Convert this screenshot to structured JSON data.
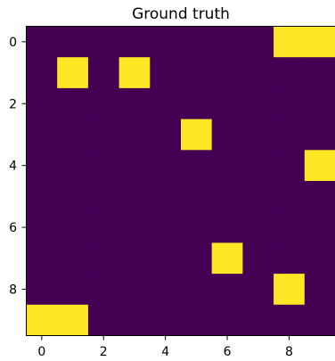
{
  "chart_data": {
    "type": "heatmap",
    "title": "Ground truth",
    "rows": 10,
    "cols": 10,
    "x_ticks": [
      0,
      2,
      4,
      6,
      8
    ],
    "y_ticks": [
      0,
      2,
      4,
      6,
      8
    ],
    "x_tick_labels": [
      "0",
      "2",
      "4",
      "6",
      "8"
    ],
    "y_tick_labels": [
      "0",
      "2",
      "4",
      "6",
      "8"
    ],
    "xlim": [
      -0.5,
      9.5
    ],
    "ylim": [
      9.5,
      -0.5
    ],
    "colormap": "viridis",
    "colors": {
      "low": "#440154",
      "high": "#fde725"
    },
    "grid": false,
    "values": [
      [
        0,
        0,
        0,
        0,
        0,
        0,
        0,
        0,
        1,
        1
      ],
      [
        0,
        1,
        0,
        1,
        0,
        0,
        0,
        0,
        0,
        0
      ],
      [
        0,
        0,
        0,
        0,
        0,
        0,
        0,
        0,
        0,
        0
      ],
      [
        0,
        0,
        0,
        0,
        0,
        1,
        0,
        0,
        0,
        0
      ],
      [
        0,
        0,
        0,
        0,
        0,
        0,
        0,
        0,
        0,
        1
      ],
      [
        0,
        0,
        0,
        0,
        0,
        0,
        0,
        0,
        0,
        0
      ],
      [
        0,
        0,
        0,
        0,
        0,
        0,
        0,
        0,
        0,
        0
      ],
      [
        0,
        0,
        0,
        0,
        0,
        0,
        1,
        0,
        0,
        0
      ],
      [
        0,
        0,
        0,
        0,
        0,
        0,
        0,
        0,
        1,
        0
      ],
      [
        1,
        1,
        0,
        0,
        0,
        0,
        0,
        0,
        0,
        0
      ]
    ]
  }
}
